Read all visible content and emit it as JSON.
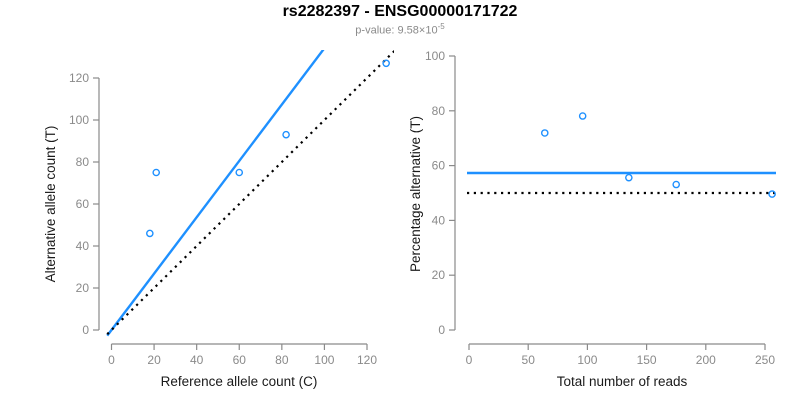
{
  "header": {
    "title": "rs2282397 - ENSG00000171722",
    "subtitle_prefix": "p-value: 9.58×10",
    "subtitle_exponent": "-5"
  },
  "colors": {
    "background": "#FFFFFF",
    "accent_blue": "#1E90FF",
    "axis_gray": "#8A8A8A",
    "tick_label_gray": "#8A8A8A",
    "axis_title_black": "#1A1A1A",
    "reference_black": "#000000"
  },
  "chart_data": [
    {
      "id": "allele-count-scatter",
      "type": "scatter",
      "title": "",
      "xlabel": "Reference allele count (C)",
      "ylabel": "Alternative allele count (T)",
      "x_ticks": [
        0,
        20,
        40,
        60,
        80,
        100,
        120
      ],
      "y_ticks": [
        0,
        20,
        40,
        60,
        80,
        100,
        120
      ],
      "xlim": [
        0,
        130
      ],
      "ylim": [
        0,
        130
      ],
      "grid": false,
      "points": [
        {
          "x": 18,
          "y": 46
        },
        {
          "x": 21,
          "y": 75
        },
        {
          "x": 60,
          "y": 75
        },
        {
          "x": 82,
          "y": 93
        },
        {
          "x": 129,
          "y": 127
        }
      ],
      "lines": [
        {
          "name": "fitted-proportion-line",
          "style": "solid",
          "color": "blue",
          "kind": "through-origin",
          "slope": 1.342
        },
        {
          "name": "identity-line",
          "style": "dotted",
          "color": "black",
          "kind": "through-origin",
          "slope": 1.0
        }
      ]
    },
    {
      "id": "percentage-vs-reads-scatter",
      "type": "scatter",
      "title": "",
      "xlabel": "Total number of reads",
      "ylabel": "Percentage alternative (T)",
      "x_ticks": [
        0,
        50,
        100,
        150,
        200,
        250
      ],
      "y_ticks": [
        0,
        20,
        40,
        60,
        80,
        100
      ],
      "xlim": [
        0,
        258
      ],
      "ylim": [
        0,
        100
      ],
      "grid": false,
      "points": [
        {
          "x": 64,
          "y": 71.9
        },
        {
          "x": 96,
          "y": 78.1
        },
        {
          "x": 135,
          "y": 55.6
        },
        {
          "x": 175,
          "y": 53.1
        },
        {
          "x": 256,
          "y": 49.6
        }
      ],
      "lines": [
        {
          "name": "mean-percentage-line",
          "style": "solid",
          "color": "blue",
          "kind": "horizontal",
          "y": 57.3
        },
        {
          "name": "fifty-percent-line",
          "style": "dotted",
          "color": "black",
          "kind": "horizontal",
          "y": 50
        }
      ]
    }
  ]
}
